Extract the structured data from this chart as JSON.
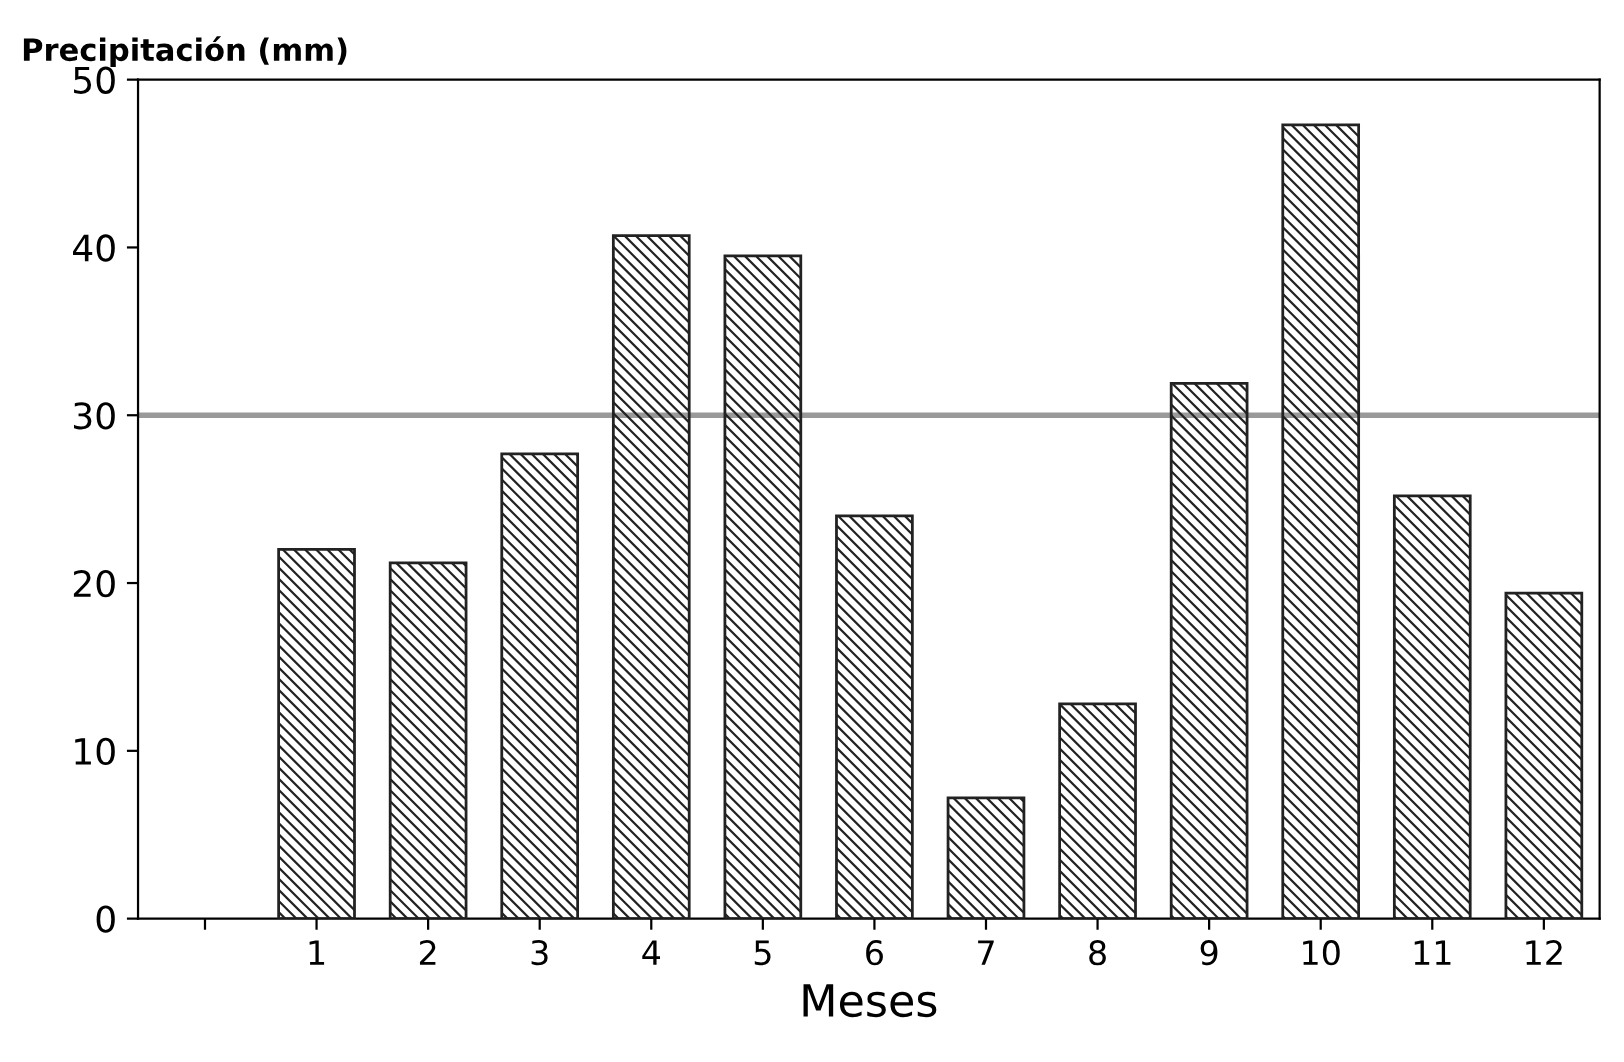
{
  "chart_data": {
    "type": "bar",
    "ylabel": "Precipitación (mm)",
    "xlabel": "Meses",
    "categories": [
      null,
      "1",
      "2",
      "3",
      "4",
      "5",
      "6",
      "7",
      "8",
      "9",
      "10",
      "11",
      "12"
    ],
    "values": [
      null,
      22.0,
      21.2,
      27.7,
      40.7,
      39.5,
      24.0,
      7.2,
      12.8,
      31.9,
      47.3,
      25.2,
      19.4
    ],
    "color": "#222222",
    "ylim": [
      0,
      50
    ],
    "yticks": [
      0,
      10,
      20,
      30,
      40,
      50
    ],
    "ref_lines": [
      {
        "axis": "y",
        "value": 30,
        "color": "#999999"
      }
    ],
    "grid": false,
    "legend": false
  }
}
